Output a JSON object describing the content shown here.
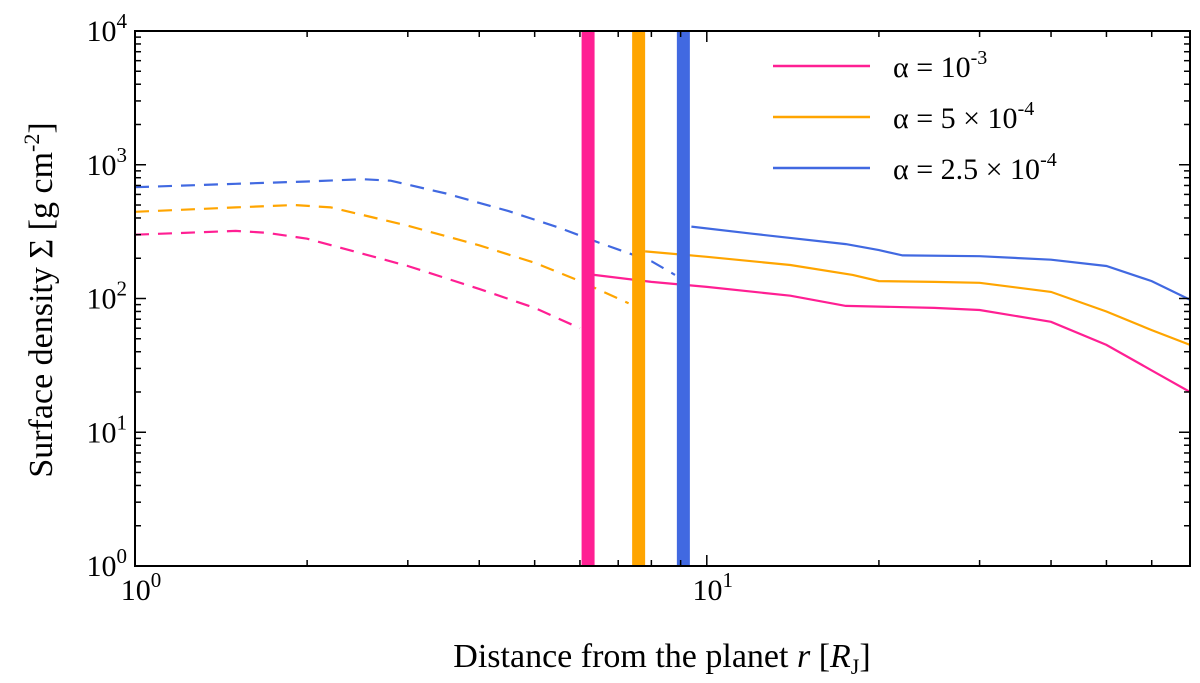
{
  "chart_data": {
    "type": "line",
    "title": "",
    "xlabel": {
      "main": "Distance from the planet ",
      "var": "r",
      "unit_open": " [",
      "unit_var": "R",
      "unit_sub": "J",
      "unit_close": "]"
    },
    "ylabel": {
      "main": "Surface density Σ [g cm",
      "exp": "-2",
      "close": "]"
    },
    "xscale": "log",
    "yscale": "log",
    "xlim": [
      1,
      70
    ],
    "ylim": [
      1,
      10000
    ],
    "x_ticks": [
      {
        "value": 1,
        "base": "10",
        "exp": "0"
      },
      {
        "value": 10,
        "base": "10",
        "exp": "1"
      }
    ],
    "y_ticks": [
      {
        "value": 1,
        "base": "10",
        "exp": "0"
      },
      {
        "value": 10,
        "base": "10",
        "exp": "1"
      },
      {
        "value": 100,
        "base": "10",
        "exp": "2"
      },
      {
        "value": 1000,
        "base": "10",
        "exp": "3"
      },
      {
        "value": 10000,
        "base": "10",
        "exp": "4"
      }
    ],
    "legend_position": "top-right",
    "series": [
      {
        "name": "alpha-1e-3",
        "legend_prefix": "α = 10",
        "legend_exp": "-3",
        "legend_suffix": "",
        "color": "#ff1f93",
        "boundary": 6.2,
        "dashed": [
          [
            1.0,
            300
          ],
          [
            1.5,
            320
          ],
          [
            1.7,
            310
          ],
          [
            2.0,
            280
          ],
          [
            3.0,
            175
          ],
          [
            4.0,
            118
          ],
          [
            5.0,
            85
          ],
          [
            6.0,
            60
          ]
        ],
        "solid": [
          [
            6.35,
            150
          ],
          [
            8.0,
            133
          ],
          [
            10.0,
            122
          ],
          [
            14.0,
            105
          ],
          [
            17.5,
            88
          ],
          [
            20.0,
            87
          ],
          [
            25.0,
            85
          ],
          [
            30.0,
            82
          ],
          [
            40.0,
            67
          ],
          [
            50.0,
            45
          ],
          [
            60.0,
            29
          ],
          [
            70.0,
            20
          ]
        ]
      },
      {
        "name": "alpha-5e-4",
        "legend_prefix": "α = 5 × 10",
        "legend_exp": "-4",
        "legend_suffix": "",
        "color": "#ffa500",
        "boundary": 7.6,
        "dashed": [
          [
            1.0,
            445
          ],
          [
            1.5,
            480
          ],
          [
            1.9,
            500
          ],
          [
            2.2,
            480
          ],
          [
            3.0,
            350
          ],
          [
            4.0,
            250
          ],
          [
            5.0,
            185
          ],
          [
            6.0,
            135
          ],
          [
            7.3,
            92
          ]
        ],
        "solid": [
          [
            7.8,
            225
          ],
          [
            10.0,
            205
          ],
          [
            14.0,
            178
          ],
          [
            18.0,
            150
          ],
          [
            20.0,
            135
          ],
          [
            25.0,
            133
          ],
          [
            30.0,
            131
          ],
          [
            40.0,
            112
          ],
          [
            50.0,
            80
          ],
          [
            60.0,
            58
          ],
          [
            70.0,
            45
          ]
        ]
      },
      {
        "name": "alpha-2.5e-4",
        "legend_prefix": "α = 2.5 × 10",
        "legend_exp": "-4",
        "legend_suffix": "",
        "color": "#4169e1",
        "boundary": 9.1,
        "dashed": [
          [
            1.0,
            680
          ],
          [
            1.5,
            720
          ],
          [
            2.0,
            750
          ],
          [
            2.5,
            780
          ],
          [
            2.8,
            760
          ],
          [
            3.5,
            610
          ],
          [
            4.5,
            450
          ],
          [
            5.5,
            340
          ],
          [
            6.5,
            260
          ],
          [
            8.0,
            190
          ],
          [
            8.8,
            150
          ]
        ],
        "solid": [
          [
            9.4,
            345
          ],
          [
            12.0,
            305
          ],
          [
            17.5,
            255
          ],
          [
            20.0,
            230
          ],
          [
            22.0,
            210
          ],
          [
            30.0,
            207
          ],
          [
            40.0,
            195
          ],
          [
            50.0,
            175
          ],
          [
            60.0,
            135
          ],
          [
            70.0,
            98
          ]
        ]
      }
    ]
  }
}
